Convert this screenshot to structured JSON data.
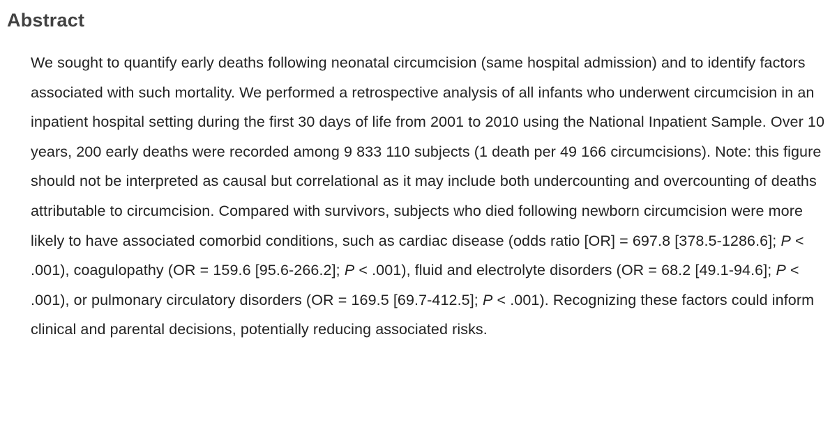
{
  "abstract": {
    "heading": "Abstract",
    "paragraph_segments": [
      {
        "text": "We sought to quantify early deaths following neonatal circumcision (same hospital admission) and to identify factors associated with such mortality. We performed a retrospective analysis of all infants who underwent circumcision in an inpatient hospital setting during the first 30 days of life from 2001 to 2010 using the National Inpatient Sample. Over 10 years, 200 early deaths were recorded among 9 833 110 subjects (1 death per 49 166 circumcisions). Note: this figure should not be interpreted as causal but correlational as it may include both undercounting and overcounting of deaths attributable to circumcision. Compared with survivors, subjects who died following newborn circumcision were more likely to have associated comorbid conditions, such as cardiac disease (odds ratio [OR] = 697.8 [378.5-1286.6]; ",
        "italic": false
      },
      {
        "text": "P",
        "italic": true
      },
      {
        "text": " < .001), coagulopathy (OR = 159.6 [95.6-266.2]; ",
        "italic": false
      },
      {
        "text": "P",
        "italic": true
      },
      {
        "text": " < .001), fluid and electrolyte disorders (OR = 68.2 [49.1-94.6]; ",
        "italic": false
      },
      {
        "text": "P",
        "italic": true
      },
      {
        "text": " < .001), or pulmonary circulatory disorders (OR = 169.5 [69.7-412.5]; ",
        "italic": false
      },
      {
        "text": "P",
        "italic": true
      },
      {
        "text": " < .001). Recognizing these factors could inform clinical and parental decisions, potentially reducing associated risks.",
        "italic": false
      }
    ]
  },
  "colors": {
    "background": "#ffffff",
    "heading_text": "#424242",
    "body_text": "#232323"
  }
}
